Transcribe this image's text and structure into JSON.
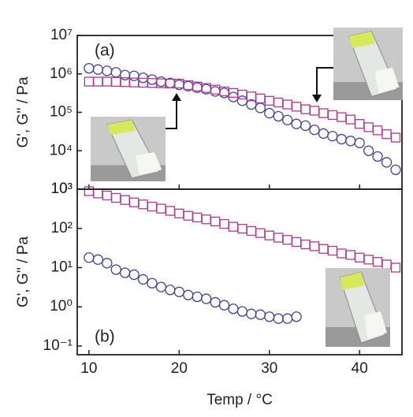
{
  "chart_data": [
    {
      "type": "scatter",
      "annotation": "(a)",
      "ylabel": "G', G'' / Pa",
      "yscale": "log",
      "xlim": [
        8.7,
        44.7
      ],
      "xticks": [
        10,
        20,
        30,
        40
      ],
      "ylim": [
        1000,
        10000000
      ],
      "yticks": [
        {
          "value": 1000,
          "label": "10³"
        },
        {
          "value": 10000,
          "label": "10⁴"
        },
        {
          "value": 100000,
          "label": "10⁵"
        },
        {
          "value": 1000000,
          "label": "10⁶"
        },
        {
          "value": 10000000,
          "label": "10⁷"
        }
      ],
      "series": [
        {
          "marker": "circle",
          "color": "#3b40a4",
          "x": [
            10,
            11,
            12,
            13,
            14,
            15,
            16,
            17,
            18,
            19,
            20,
            21,
            22,
            23,
            24,
            25,
            26,
            27,
            28,
            29,
            30,
            31,
            32,
            33,
            34,
            35,
            36,
            37,
            38,
            39,
            40,
            41,
            42,
            43,
            44
          ],
          "values": [
            1400000,
            1300000,
            1200000,
            1100000,
            930000,
            890000,
            790000,
            710000,
            630000,
            580000,
            520000,
            480000,
            440000,
            400000,
            350000,
            320000,
            250000,
            200000,
            160000,
            130000,
            95000,
            79000,
            63000,
            50000,
            45000,
            35000,
            28000,
            24000,
            20000,
            18000,
            16000,
            10000,
            7100,
            5000,
            3200
          ]
        },
        {
          "marker": "square",
          "color": "#b33592",
          "x": [
            10,
            11,
            12,
            13,
            14,
            15,
            16,
            17,
            18,
            19,
            20,
            21,
            22,
            23,
            24,
            25,
            26,
            27,
            28,
            29,
            30,
            31,
            32,
            33,
            34,
            35,
            36,
            37,
            38,
            39,
            40,
            41,
            42,
            43,
            44
          ],
          "values": [
            630000,
            630000,
            630000,
            620000,
            610000,
            600000,
            590000,
            580000,
            570000,
            560000,
            560000,
            510000,
            470000,
            430000,
            390000,
            350000,
            320000,
            290000,
            260000,
            230000,
            200000,
            180000,
            160000,
            140000,
            120000,
            110000,
            95000,
            85000,
            75000,
            65000,
            50000,
            41000,
            34000,
            27000,
            22000
          ]
        }
      ]
    },
    {
      "type": "scatter",
      "annotation": "(b)",
      "ylabel": "G', G'' / Pa",
      "xlabel": "Temp / °C",
      "yscale": "log",
      "xlim": [
        8.7,
        44.7
      ],
      "xticks": [
        10,
        20,
        30,
        40
      ],
      "ylim": [
        0.06,
        1000
      ],
      "yticks": [
        {
          "value": 0.1,
          "label": "10⁻¹"
        },
        {
          "value": 1,
          "label": "10⁰"
        },
        {
          "value": 10,
          "label": "10¹"
        },
        {
          "value": 100,
          "label": "10²"
        },
        {
          "value": 1000,
          "label": "10³"
        }
      ],
      "series": [
        {
          "marker": "circle",
          "color": "#3b40a4",
          "x": [
            10,
            11,
            12,
            13,
            14,
            15,
            16,
            17,
            18,
            19,
            20,
            21,
            22,
            23,
            24,
            25,
            26,
            27,
            28,
            29,
            30,
            31,
            32,
            33
          ],
          "values": [
            18,
            16,
            13,
            8.9,
            7.4,
            6.6,
            5,
            4,
            3.2,
            2.7,
            2.4,
            2,
            1.8,
            1.6,
            1.3,
            1.1,
            0.89,
            0.76,
            0.66,
            0.63,
            0.56,
            0.5,
            0.5,
            0.56
          ]
        },
        {
          "marker": "square",
          "color": "#b33592",
          "x": [
            10,
            11,
            12,
            13,
            14,
            15,
            16,
            17,
            18,
            19,
            20,
            21,
            22,
            23,
            24,
            25,
            26,
            27,
            28,
            29,
            30,
            31,
            32,
            33,
            34,
            35,
            36,
            37,
            38,
            39,
            40,
            41,
            42,
            43,
            44
          ],
          "values": [
            890,
            780,
            690,
            600,
            530,
            460,
            410,
            360,
            320,
            280,
            240,
            210,
            190,
            170,
            150,
            130,
            110,
            98,
            86,
            76,
            66,
            58,
            51,
            45,
            39,
            35,
            30,
            27,
            23,
            21,
            18,
            16,
            14,
            12,
            10
          ]
        }
      ]
    }
  ]
}
